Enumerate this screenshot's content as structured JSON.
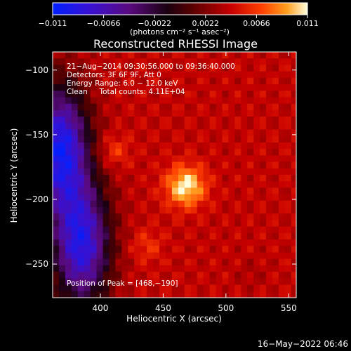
{
  "chart_data": {
    "type": "heatmap",
    "title": "Reconstructed RHESSI Image",
    "xlabel": "Heliocentric X (arcsec)",
    "ylabel": "Heliocentric Y (arcsec)",
    "xlim": [
      362,
      556
    ],
    "ylim": [
      -276,
      -86
    ],
    "xticks": [
      400,
      450,
      500,
      550
    ],
    "xtick_labels": [
      "400",
      "450",
      "500",
      "550"
    ],
    "yticks": [
      -100,
      -150,
      -200,
      -250
    ],
    "ytick_labels": [
      "−100",
      "−150",
      "−200",
      "−250"
    ],
    "colorbar": {
      "range": [
        -0.011,
        0.011
      ],
      "ticks": [
        -0.011,
        -0.0066,
        -0.0022,
        0.0022,
        0.0066,
        0.011
      ],
      "tick_labels": [
        "−0.011",
        "−0.0066",
        "−0.0022",
        "0.0022",
        "0.0066",
        "0.011"
      ],
      "units_label": "(photons cm⁻² s⁻¹ asec⁻²)",
      "colormap": "red-temperature"
    },
    "annotations": [
      "21−Aug−2014 09:30:56.000 to 09:36:40.000",
      "Detectors: 3F 6F 9F, Att 0",
      "Energy Range: 6.0 − 12.0 keV",
      "Clean     Total counts: 4.11E+04"
    ],
    "peak_label": "Position of Peak = [468,−190]",
    "peak": [
      468,
      -190
    ],
    "sources": [
      {
        "x": 468,
        "y": -190,
        "value": 0.011
      },
      {
        "x": 410,
        "y": -163,
        "value": 0.0068
      },
      {
        "x": 437,
        "y": -236,
        "value": 0.0062
      },
      {
        "x": 520,
        "y": -258,
        "value": 0.0035
      }
    ],
    "negative_regions": [
      {
        "x": 368,
        "y": -160,
        "value": -0.0095
      },
      {
        "x": 385,
        "y": -235,
        "value": -0.0085
      }
    ],
    "footer_date": "16−May−2022 06:46"
  }
}
